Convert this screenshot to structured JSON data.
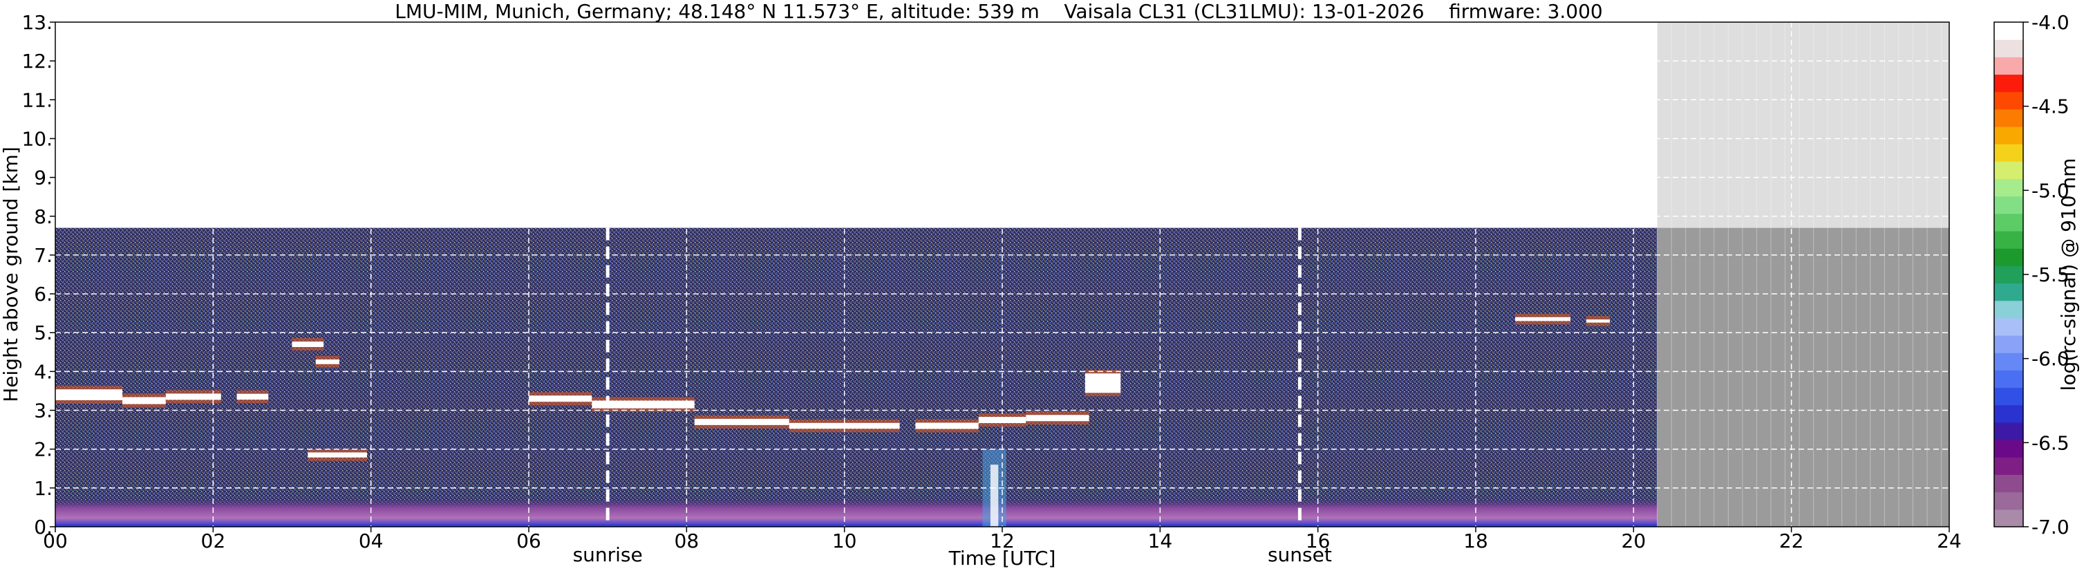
{
  "chart_data": {
    "type": "heatmap",
    "title": "LMU-MIM, Munich, Germany; 48.148° N 11.573° E, altitude: 539 m    Vaisala CL31 (CL31LMU): 13-01-2026    firmware: 3.000",
    "xlabel": "Time [UTC]",
    "ylabel": "Height above ground [km]",
    "colorbar_label": "log(rc-signal) @ 910 nm",
    "xlim": [
      0,
      24
    ],
    "ylim": [
      0,
      13
    ],
    "x_ticks": [
      "00",
      "02",
      "04",
      "06",
      "08",
      "10",
      "12",
      "14",
      "16",
      "18",
      "20",
      "22",
      "24"
    ],
    "y_ticks": [
      "0.",
      "1.",
      "2.",
      "3.",
      "4.",
      "5.",
      "6.",
      "7.",
      "8.",
      "9.",
      "10.",
      "11.",
      "12.",
      "13."
    ],
    "grid": true,
    "colorbar": {
      "range": [
        -7.0,
        -4.0
      ],
      "tick_labels": [
        "-4.0",
        "-4.5",
        "-5.0",
        "-5.5",
        "-6.0",
        "-6.5",
        "-7.0"
      ],
      "colors_low_to_high": [
        "#a98aa9",
        "#9a6a9a",
        "#8e4c8e",
        "#7f1f86",
        "#6a0a88",
        "#3d1aa6",
        "#2a32d0",
        "#3050e6",
        "#4a6ff2",
        "#6687f6",
        "#8aa3f8",
        "#a9bff8",
        "#8ad0d8",
        "#2faa8e",
        "#20a05a",
        "#1c9a2e",
        "#36b344",
        "#5ccc66",
        "#82df86",
        "#a6ec8c",
        "#d6ee6e",
        "#f4d21c",
        "#f9a800",
        "#fb7c00",
        "#fd4a00",
        "#fd1b0c",
        "#f9a9a9",
        "#ece0e0",
        "#ffffff"
      ]
    },
    "measurement_end_utc": 20.3,
    "instrument_max_height_km": 7.7,
    "annotations": [
      {
        "text": "sunrise",
        "x": 7.0
      },
      {
        "text": "sunset",
        "x": 15.77
      }
    ],
    "colors": {
      "no_data_upper": "#dedede",
      "no_data_lower": "#9b9b9b",
      "background_noise": "#2f2f5e",
      "cloud": "#ffffff"
    }
  }
}
